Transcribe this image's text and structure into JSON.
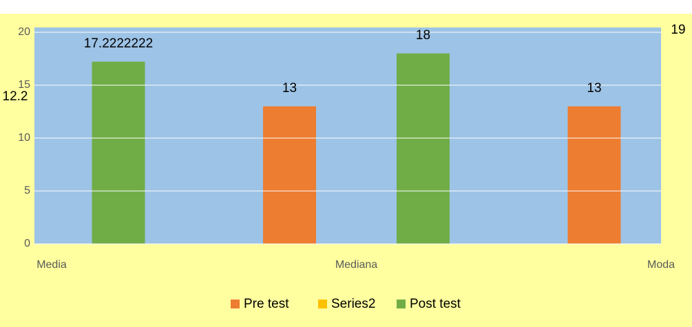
{
  "chart_data": {
    "type": "bar",
    "categories": [
      "Media",
      "Mediana",
      "Moda"
    ],
    "series": [
      {
        "name": "Pre test",
        "color": "#ed7d31",
        "values": [
          12.2,
          13,
          13
        ]
      },
      {
        "name": "Series2",
        "color": "#ffc000",
        "values": [
          null,
          null,
          null
        ]
      },
      {
        "name": "Post test",
        "color": "#70ad47",
        "values": [
          17.2222222,
          18,
          19
        ]
      }
    ],
    "ylim": [
      0,
      20
    ],
    "yticks": [
      0,
      5,
      10,
      15,
      20
    ],
    "grid": true,
    "legend": "bottom"
  }
}
